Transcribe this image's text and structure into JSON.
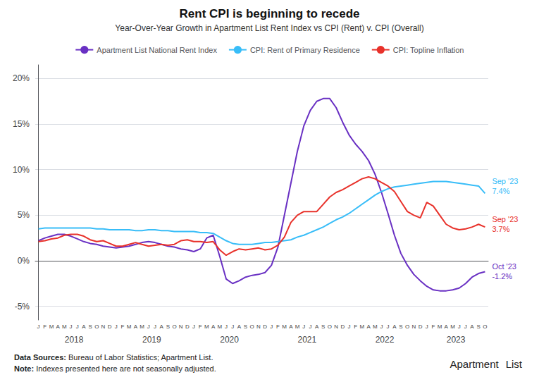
{
  "chart_data": {
    "type": "line",
    "title": "Rent CPI is beginning to recede",
    "subtitle": "Year-Over-Year Growth in Apartment List Rent Index vs CPI (Rent) v. CPI (Overall)",
    "categories": [
      "J",
      "F",
      "M",
      "A",
      "M",
      "J",
      "J",
      "A",
      "S",
      "O",
      "N",
      "D",
      "J",
      "F",
      "M",
      "A",
      "M",
      "J",
      "J",
      "A",
      "S",
      "O",
      "N",
      "D",
      "J",
      "F",
      "M",
      "A",
      "M",
      "J",
      "J",
      "A",
      "S",
      "O",
      "N",
      "D",
      "J",
      "F",
      "M",
      "A",
      "M",
      "J",
      "J",
      "A",
      "S",
      "O",
      "N",
      "D",
      "J",
      "F",
      "M",
      "A",
      "M",
      "J",
      "J",
      "A",
      "S",
      "O",
      "N",
      "D",
      "J",
      "F",
      "M",
      "A",
      "M",
      "J",
      "J",
      "A",
      "S",
      "O"
    ],
    "years": [
      2018,
      2019,
      2020,
      2021,
      2022,
      2023
    ],
    "series": [
      {
        "name": "Apartment List National Rent Index",
        "color": "#6930C3",
        "values": [
          0.022,
          0.025,
          0.027,
          0.029,
          0.029,
          0.027,
          0.024,
          0.021,
          0.019,
          0.018,
          0.016,
          0.015,
          0.014,
          0.015,
          0.016,
          0.018,
          0.02,
          0.021,
          0.02,
          0.018,
          0.016,
          0.015,
          0.013,
          0.012,
          0.01,
          0.013,
          0.025,
          0.028,
          0.005,
          -0.02,
          -0.025,
          -0.022,
          -0.018,
          -0.016,
          -0.015,
          -0.013,
          -0.005,
          0.015,
          0.05,
          0.085,
          0.12,
          0.148,
          0.165,
          0.175,
          0.178,
          0.178,
          0.168,
          0.152,
          0.138,
          0.128,
          0.12,
          0.11,
          0.095,
          0.075,
          0.052,
          0.028,
          0.008,
          -0.005,
          -0.015,
          -0.022,
          -0.028,
          -0.032,
          -0.033,
          -0.033,
          -0.032,
          -0.03,
          -0.025,
          -0.018,
          -0.014,
          -0.012
        ]
      },
      {
        "name": "CPI: Rent of Primary Residence",
        "color": "#38BDF8",
        "values": [
          0.035,
          0.036,
          0.036,
          0.036,
          0.036,
          0.036,
          0.036,
          0.036,
          0.036,
          0.035,
          0.035,
          0.034,
          0.034,
          0.034,
          0.034,
          0.033,
          0.033,
          0.034,
          0.034,
          0.033,
          0.033,
          0.032,
          0.032,
          0.032,
          0.032,
          0.031,
          0.031,
          0.03,
          0.026,
          0.022,
          0.019,
          0.018,
          0.018,
          0.018,
          0.019,
          0.02,
          0.02,
          0.021,
          0.022,
          0.023,
          0.026,
          0.028,
          0.031,
          0.034,
          0.037,
          0.041,
          0.045,
          0.048,
          0.052,
          0.057,
          0.062,
          0.067,
          0.072,
          0.076,
          0.079,
          0.081,
          0.082,
          0.083,
          0.084,
          0.085,
          0.086,
          0.087,
          0.087,
          0.087,
          0.086,
          0.085,
          0.084,
          0.083,
          0.082,
          0.074
        ]
      },
      {
        "name": "CPI: Topline Inflation",
        "color": "#E8312A",
        "values": [
          0.021,
          0.022,
          0.024,
          0.025,
          0.028,
          0.029,
          0.029,
          0.027,
          0.023,
          0.021,
          0.022,
          0.019,
          0.016,
          0.016,
          0.018,
          0.02,
          0.018,
          0.016,
          0.017,
          0.018,
          0.017,
          0.018,
          0.022,
          0.023,
          0.021,
          0.021,
          0.02,
          0.021,
          0.012,
          0.006,
          0.01,
          0.013,
          0.012,
          0.013,
          0.014,
          0.012,
          0.013,
          0.017,
          0.026,
          0.042,
          0.05,
          0.054,
          0.054,
          0.054,
          0.062,
          0.07,
          0.075,
          0.078,
          0.082,
          0.086,
          0.09,
          0.092,
          0.09,
          0.086,
          0.082,
          0.076,
          0.065,
          0.054,
          0.05,
          0.047,
          0.064,
          0.06,
          0.05,
          0.04,
          0.036,
          0.034,
          0.035,
          0.037,
          0.04,
          0.037
        ]
      }
    ],
    "ylim": [
      -0.065,
      0.215
    ],
    "yticks": [
      {
        "value": -0.05,
        "label": "-5%"
      },
      {
        "value": 0.0,
        "label": "0%"
      },
      {
        "value": 0.05,
        "label": "5%"
      },
      {
        "value": 0.1,
        "label": "10%"
      },
      {
        "value": 0.15,
        "label": "15%"
      },
      {
        "value": 0.2,
        "label": "20%"
      }
    ],
    "grid": true,
    "legend": "top",
    "annotations": [
      {
        "text": "Sep '23\n7.4%",
        "series": 1,
        "y": 0.082
      },
      {
        "text": "Sep '23\n3.7%",
        "series": 2,
        "y": 0.04
      },
      {
        "text": "Oct '23\n-1.2%",
        "series": 0,
        "y": -0.012
      }
    ],
    "footnotes": [
      {
        "bold": "Data Sources:",
        "normal": " Bureau of Labor Statistics; Apartment List."
      },
      {
        "bold": "Note:",
        "normal": " Indexes presented here are not seasonally adjusted."
      }
    ],
    "logo": [
      "Apartment",
      "List"
    ]
  }
}
